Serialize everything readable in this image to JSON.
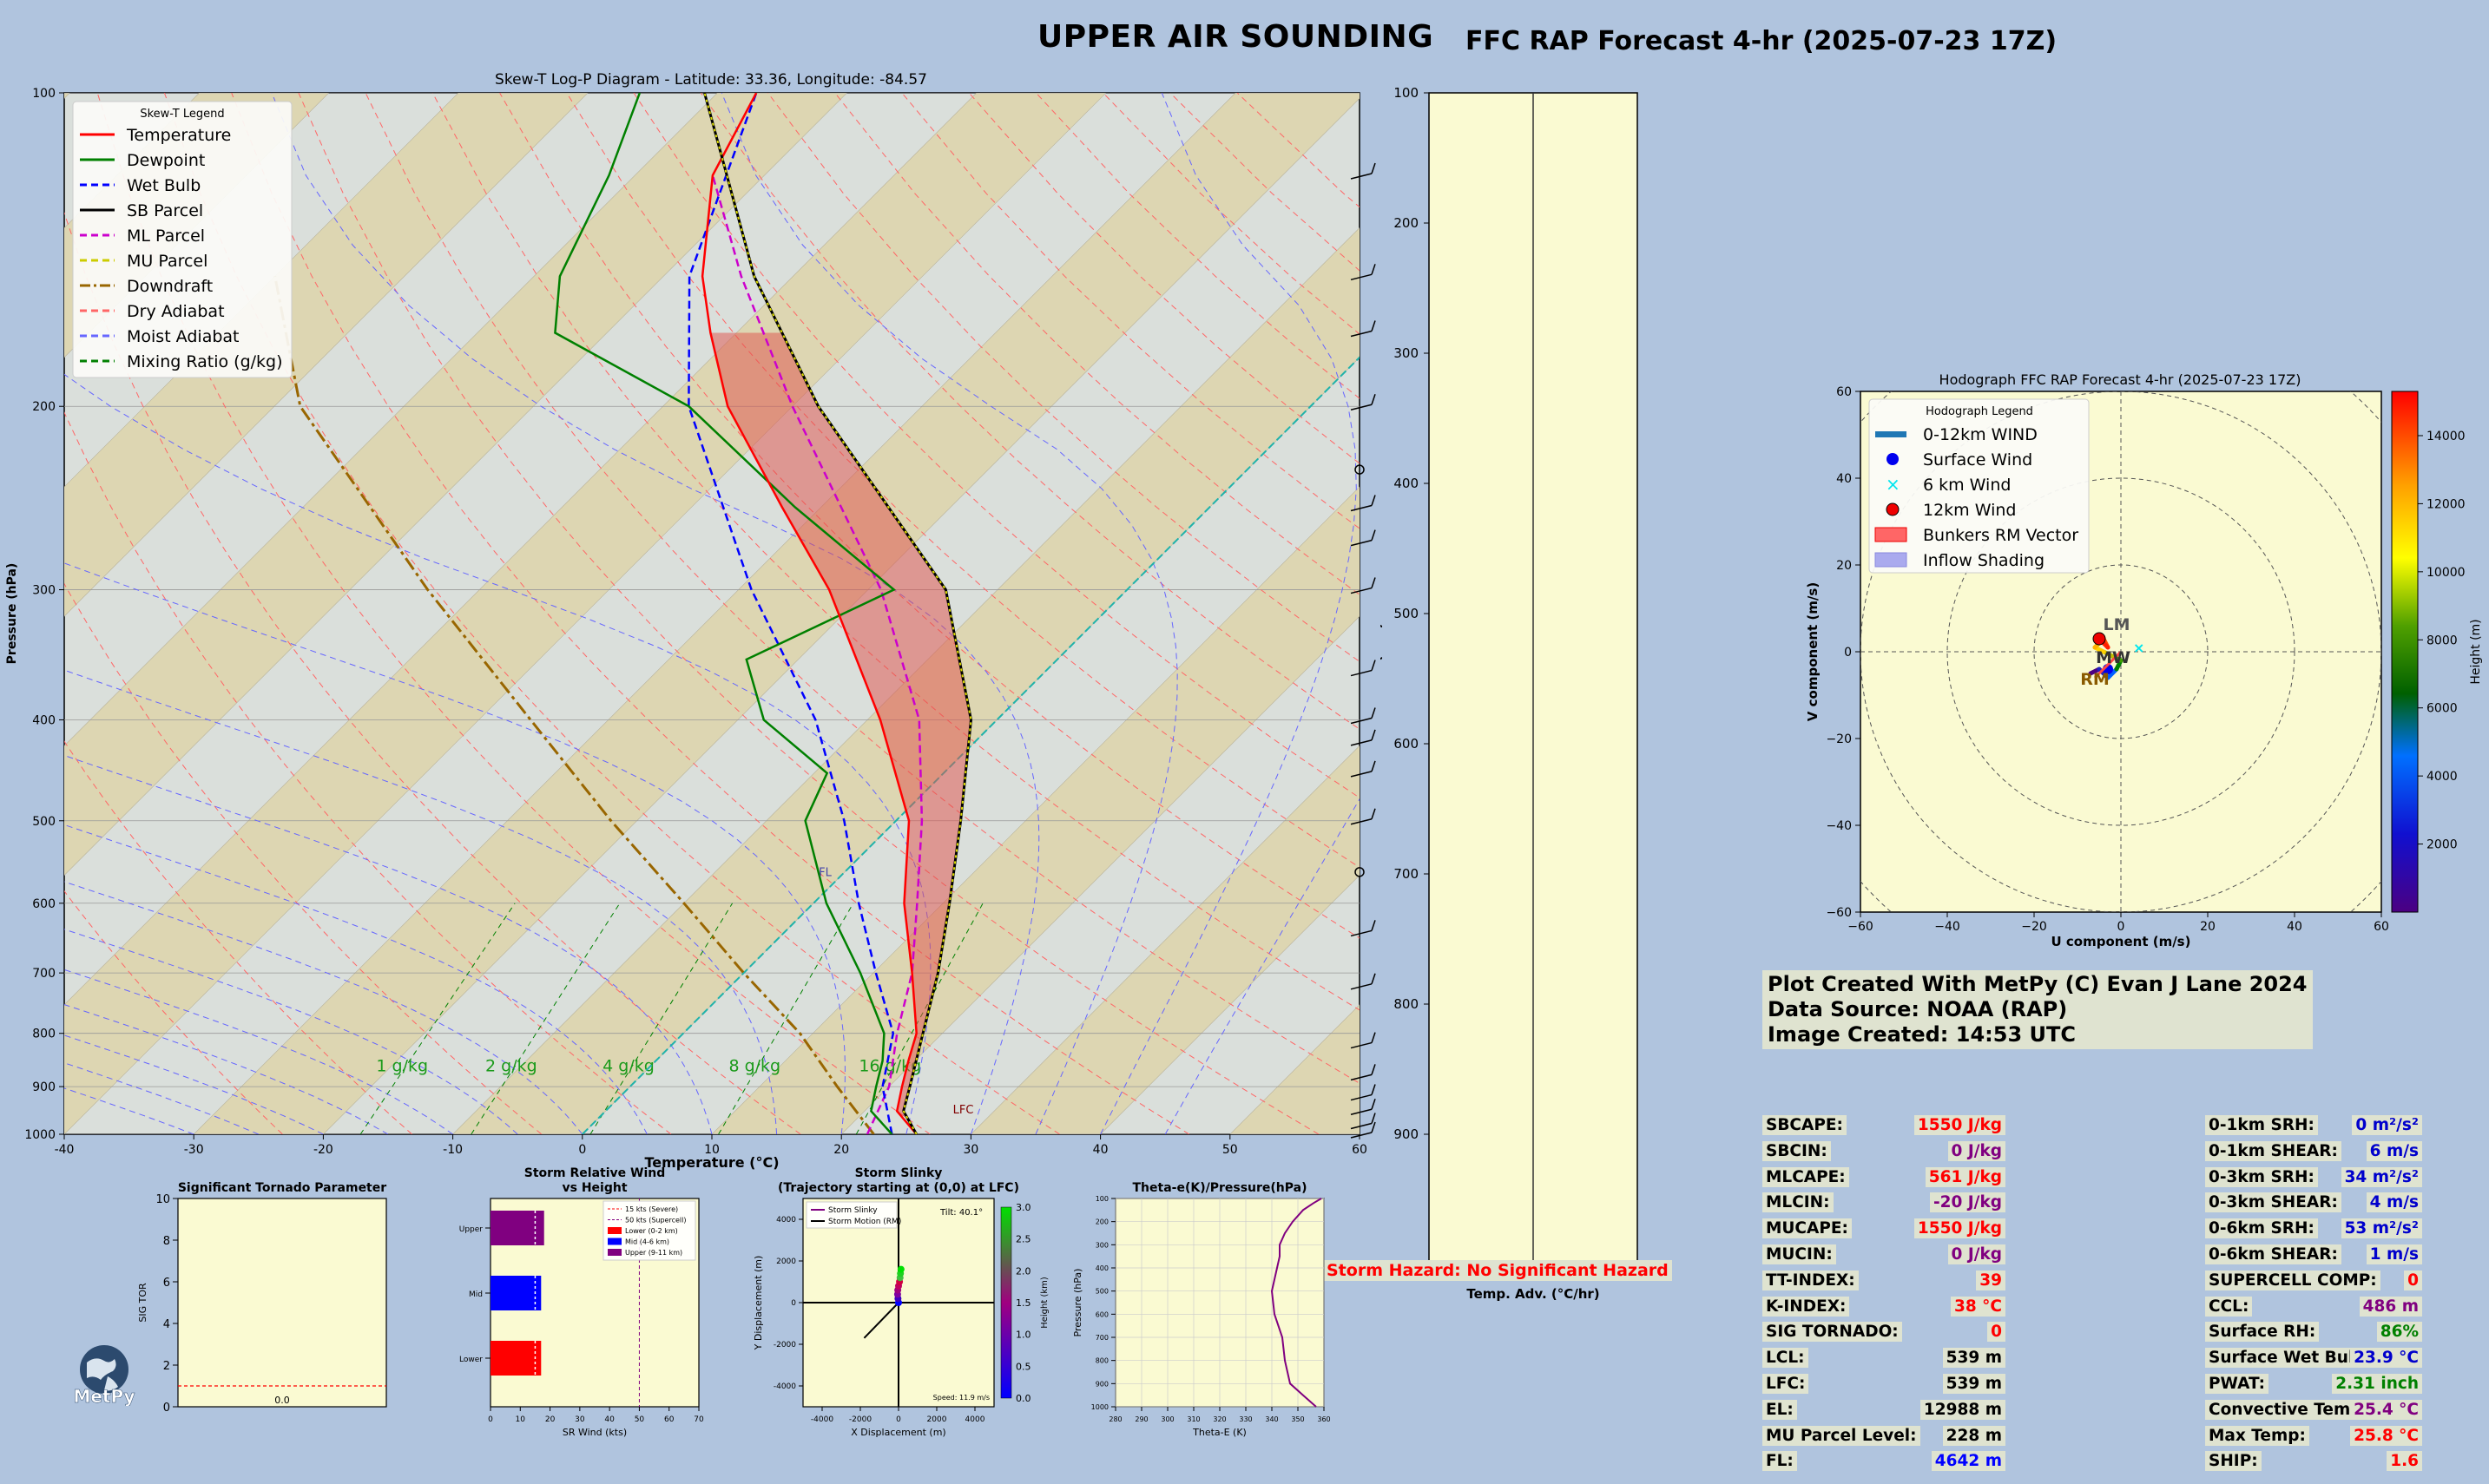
{
  "header": {
    "title": "UPPER AIR SOUNDING",
    "subtitle": "FFC RAP Forecast 4-hr (2025-07-23 17Z)"
  },
  "skewt": {
    "title": "Skew-T Log-P Diagram - Latitude: 33.36, Longitude: -84.57",
    "xlabel": "Temperature (°C)",
    "ylabel": "Pressure (hPa)",
    "x_ticks": [
      "-40",
      "-30",
      "-20",
      "-10",
      "0",
      "10",
      "20",
      "30",
      "40",
      "50",
      "60"
    ],
    "y_ticks": [
      "100",
      "200",
      "300",
      "400",
      "500",
      "600",
      "700",
      "800",
      "900",
      "1000"
    ],
    "legend_title": "Skew-T Legend",
    "legend": [
      {
        "label": "Temperature",
        "color": "#ff0000",
        "dash": "solid"
      },
      {
        "label": "Dewpoint",
        "color": "#008000",
        "dash": "solid"
      },
      {
        "label": "Wet Bulb",
        "color": "#0000ff",
        "dash": "dashed"
      },
      {
        "label": "SB Parcel",
        "color": "#000000",
        "dash": "solid"
      },
      {
        "label": "ML Parcel",
        "color": "#cc00cc",
        "dash": "dashed"
      },
      {
        "label": "MU Parcel",
        "color": "#cccc00",
        "dash": "dashed"
      },
      {
        "label": "Downdraft",
        "color": "#996600",
        "dash": "dashdot"
      },
      {
        "label": "Dry Adiabat",
        "color": "#ff6666",
        "dash": "dashed"
      },
      {
        "label": "Moist Adiabat",
        "color": "#6666ff",
        "dash": "dashed"
      },
      {
        "label": "Mixing Ratio (g/kg)",
        "color": "#008000",
        "dash": "dashed"
      }
    ],
    "mixing_labels": [
      "1 g/kg",
      "2 g/kg",
      "4 g/kg",
      "8 g/kg",
      "16 g/kg"
    ],
    "lfc_label": "LFC",
    "fl_label": "FL"
  },
  "temp_adv": {
    "xlabel": "Temp. Adv. (°C/hr)",
    "y_ticks": [
      "100",
      "200",
      "300",
      "400",
      "500",
      "600",
      "700",
      "800",
      "900"
    ]
  },
  "hodograph": {
    "title": "Hodograph FFC RAP Forecast 4-hr (2025-07-23 17Z)",
    "xlabel": "U component (m/s)",
    "ylabel": "V component (m/s)",
    "cbar_label": "Height (m)",
    "x_ticks": [
      "−60",
      "−40",
      "−20",
      "0",
      "20",
      "40",
      "60"
    ],
    "y_ticks": [
      "60",
      "40",
      "20",
      "0",
      "−20",
      "−40",
      "−60"
    ],
    "cbar_ticks": [
      "14000",
      "12000",
      "10000",
      "8000",
      "6000",
      "4000",
      "2000"
    ],
    "legend_title": "Hodograph Legend",
    "legend": [
      "0-12km WIND",
      "Surface Wind",
      "6 km Wind",
      "12km Wind",
      "Bunkers RM Vector",
      "Inflow Shading"
    ],
    "labels": {
      "lm": "LM",
      "rm": "RM",
      "mw": "MW"
    }
  },
  "credits": {
    "line1": "Plot Created With MetPy (C) Evan J Lane 2024",
    "line2": "Data Source: NOAA (RAP)",
    "line3": "Image Created: 14:53 UTC"
  },
  "hazard": "Storm Hazard: No Significant Hazard",
  "stats_left": [
    {
      "label": "SBCAPE:",
      "value": "1550 J/kg",
      "color": "#ff0000"
    },
    {
      "label": "SBCIN:",
      "value": "0 J/kg",
      "color": "#800080"
    },
    {
      "label": "MLCAPE:",
      "value": "561 J/kg",
      "color": "#ff0000"
    },
    {
      "label": "MLCIN:",
      "value": "-20 J/kg",
      "color": "#800080"
    },
    {
      "label": "MUCAPE:",
      "value": "1550 J/kg",
      "color": "#ff0000"
    },
    {
      "label": "MUCIN:",
      "value": "0 J/kg",
      "color": "#800080"
    },
    {
      "label": "TT-INDEX:",
      "value": "39",
      "color": "#ff0000"
    },
    {
      "label": "K-INDEX:",
      "value": "38 °C",
      "color": "#ff0000"
    },
    {
      "label": "SIG TORNADO:",
      "value": "0",
      "color": "#ff0000"
    },
    {
      "label": "LCL:",
      "value": "539 m",
      "color": "#000000"
    },
    {
      "label": "LFC:",
      "value": "539 m",
      "color": "#000000"
    },
    {
      "label": "EL:",
      "value": "12988 m",
      "color": "#000000"
    },
    {
      "label": "MU Parcel Level:",
      "value": "228 m",
      "color": "#000000"
    },
    {
      "label": "FL:",
      "value": "4642 m",
      "color": "#0000ff"
    }
  ],
  "stats_right": [
    {
      "label": "0-1km SRH:",
      "value": "0 m²/s²",
      "color": "#0000cc"
    },
    {
      "label": "0-1km SHEAR:",
      "value": "6 m/s",
      "color": "#0000cc"
    },
    {
      "label": "0-3km SRH:",
      "value": "34 m²/s²",
      "color": "#0000cc"
    },
    {
      "label": "0-3km SHEAR:",
      "value": "4 m/s",
      "color": "#0000cc"
    },
    {
      "label": "0-6km SRH:",
      "value": "53 m²/s²",
      "color": "#0000cc"
    },
    {
      "label": "0-6km SHEAR:",
      "value": "1 m/s",
      "color": "#0000cc"
    },
    {
      "label": "SUPERCELL COMP:",
      "value": "0",
      "color": "#ff0000"
    },
    {
      "label": "CCL:",
      "value": "486 m",
      "color": "#800080"
    },
    {
      "label": "Surface RH:",
      "value": "86%",
      "color": "#008000"
    },
    {
      "label": "Surface Wet Bulb:",
      "value": "23.9 °C",
      "color": "#0000cc"
    },
    {
      "label": "PWAT:",
      "value": "2.31 inch",
      "color": "#008000"
    },
    {
      "label": "Convective Temp:",
      "value": "25.4 °C",
      "color": "#800080"
    },
    {
      "label": "Max Temp:",
      "value": "25.8 °C",
      "color": "#ff0000"
    },
    {
      "label": "SHIP:",
      "value": "1.6",
      "color": "#ff0000"
    }
  ],
  "stp_panel": {
    "title": "Significant Tornado Parameter",
    "ylabel": "SIG TOR",
    "y_ticks": [
      "10",
      "8",
      "6",
      "4",
      "2",
      "0"
    ],
    "value_label": "0.0"
  },
  "srw_panel": {
    "title_line1": "Storm Relative Wind",
    "title_line2": "vs Height",
    "xlabel": "SR Wind (kts)",
    "x_ticks": [
      "0",
      "10",
      "20",
      "30",
      "40",
      "50",
      "60",
      "70"
    ],
    "categories": [
      "Upper",
      "Mid",
      "Lower"
    ],
    "legend": [
      "15 kts (Severe)",
      "50 kts (Supercell)",
      "Lower (0-2 km)",
      "Mid (4-6 km)",
      "Upper (9-11 km)"
    ]
  },
  "slinky_panel": {
    "title_line1": "Storm Slinky",
    "title_line2": "(Trajectory starting at (0,0) at LFC)",
    "xlabel": "X Displacement (m)",
    "ylabel": "Y Displacement (m)",
    "cbar_label": "Height (km)",
    "x_ticks": [
      "-4000",
      "-2000",
      "0",
      "2000",
      "4000"
    ],
    "y_ticks": [
      "4000",
      "2000",
      "0",
      "-2000",
      "-4000"
    ],
    "cbar_ticks": [
      "3.0",
      "2.5",
      "2.0",
      "1.5",
      "1.0",
      "0.5",
      "0.0"
    ],
    "legend": [
      "Storm Slinky",
      "Storm Motion (RM)"
    ],
    "tilt": "Tilt: 40.1°",
    "speed": "Speed: 11.9 m/s"
  },
  "thetae_panel": {
    "title": "Theta-e(K)/Pressure(hPa)",
    "xlabel": "Theta-E (K)",
    "ylabel": "Pressure (hPa)",
    "x_ticks": [
      "280",
      "290",
      "300",
      "310",
      "320",
      "330",
      "340",
      "350",
      "360"
    ],
    "y_ticks": [
      "100",
      "200",
      "300",
      "400",
      "500",
      "600",
      "700",
      "800",
      "900",
      "1000"
    ]
  },
  "chart_data": [
    {
      "type": "line",
      "title": "Skew-T Log-P Diagram - Latitude: 33.36, Longitude: -84.57",
      "xlabel": "Temperature (°C)",
      "ylabel": "Pressure (hPa)",
      "xlim": [
        -40,
        60
      ],
      "ylim": [
        1000,
        100
      ],
      "y_scale": "log",
      "skew": "45°",
      "series": [
        {
          "name": "Temperature",
          "pressure": [
            1000,
            950,
            900,
            850,
            800,
            700,
            600,
            500,
            400,
            300,
            250,
            200,
            170,
            150,
            120,
            100
          ],
          "temp": [
            25.8,
            22.5,
            21,
            19.5,
            18,
            13,
            7,
            1,
            -9,
            -23,
            -33,
            -45,
            -52,
            -57,
            -64,
            -67
          ]
        },
        {
          "name": "Dewpoint",
          "pressure": [
            1000,
            950,
            900,
            850,
            800,
            700,
            600,
            500,
            450,
            400,
            350,
            300,
            250,
            200,
            170,
            150,
            120,
            100
          ],
          "temp": [
            23.9,
            20.5,
            19,
            17.5,
            15.5,
            9,
            1,
            -7,
            -9,
            -18,
            -24,
            -18,
            -32,
            -48,
            -64,
            -68,
            -72,
            -76
          ]
        },
        {
          "name": "Wet Bulb",
          "pressure": [
            1000,
            900,
            800,
            700,
            600,
            500,
            400,
            300,
            200,
            150,
            100
          ],
          "temp": [
            23.9,
            19.5,
            16.2,
            10.2,
            3.5,
            -4,
            -14,
            -29,
            -48,
            -58,
            -67
          ]
        },
        {
          "name": "SB Parcel",
          "pressure": [
            1000,
            950,
            900,
            800,
            700,
            600,
            500,
            400,
            300,
            200,
            150,
            100
          ],
          "temp": [
            25.8,
            23,
            21.6,
            18.5,
            15,
            10.5,
            5,
            -2,
            -14,
            -38,
            -53,
            -71
          ]
        },
        {
          "name": "ML Parcel",
          "pressure": [
            1000,
            900,
            800,
            700,
            600,
            500,
            400,
            300,
            200,
            150,
            120
          ],
          "temp": [
            22,
            20,
            16.5,
            13,
            8,
            2,
            -6,
            -19,
            -40,
            -54,
            -64
          ]
        },
        {
          "name": "Downdraft",
          "pressure": [
            1000,
            900,
            800,
            700,
            600,
            500,
            400,
            300,
            200,
            150
          ],
          "temp": [
            22.5,
            16,
            9,
            0,
            -10,
            -22,
            -36,
            -54,
            -78,
            -90
          ]
        }
      ],
      "lfc_hpa": 940,
      "el_hpa": 170
    },
    {
      "type": "line",
      "title": "Hodograph FFC RAP Forecast 4-hr (2025-07-23 17Z)",
      "xlabel": "U component (m/s)",
      "ylabel": "V component (m/s)",
      "xlim": [
        -60,
        60
      ],
      "ylim": [
        -60,
        60
      ],
      "series": [
        {
          "name": "0-12km WIND",
          "u": [
            -7,
            -5,
            -3,
            -1,
            0,
            -2,
            -4,
            -6,
            -5,
            -4,
            -3,
            -5
          ],
          "v": [
            -5,
            -4,
            -6,
            -4,
            -2,
            -1,
            0,
            1,
            2,
            3,
            1,
            3
          ]
        }
      ],
      "surface_wind": [
        -3,
        -4
      ],
      "six_km_wind": [
        4,
        1
      ],
      "twelve_km_wind": [
        -5,
        3
      ],
      "bunkers_rm": [
        -6,
        -6
      ],
      "bunkers_lm": [
        -1,
        5
      ],
      "mean_wind": [
        -3,
        -1
      ]
    },
    {
      "type": "bar",
      "title": "Significant Tornado Parameter",
      "ylabel": "SIG TOR",
      "values": [
        0.0
      ],
      "ylim": [
        0,
        10
      ],
      "threshold": 1
    },
    {
      "type": "bar",
      "title": "Storm Relative Wind vs Height",
      "xlabel": "SR Wind (kts)",
      "categories": [
        "Upper",
        "Mid",
        "Lower"
      ],
      "values": [
        18,
        17,
        17
      ],
      "xlim": [
        0,
        70
      ],
      "reference_lines": [
        15,
        50
      ]
    },
    {
      "type": "scatter",
      "title": "Storm Slinky",
      "xlabel": "X Displacement (m)",
      "ylabel": "Y Displacement (m)",
      "xlim": [
        -5000,
        5000
      ],
      "ylim": [
        -5000,
        5000
      ],
      "series": [
        {
          "name": "Storm Slinky",
          "x": [
            0,
            -30,
            -50,
            -40,
            0,
            50,
            80,
            100,
            130
          ],
          "y": [
            0,
            200,
            400,
            600,
            800,
            1000,
            1200,
            1400,
            1600
          ]
        }
      ],
      "storm_motion_rm": {
        "x": [
          0,
          -1800
        ],
        "y": [
          0,
          -1700
        ]
      }
    },
    {
      "type": "line",
      "title": "Theta-e(K)/Pressure(hPa)",
      "xlabel": "Theta-E (K)",
      "ylabel": "Pressure (hPa)",
      "xlim": [
        280,
        360
      ],
      "ylim": [
        1000,
        100
      ],
      "series": [
        {
          "name": "Theta-e",
          "pressure": [
            1000,
            950,
            900,
            850,
            800,
            700,
            600,
            500,
            400,
            350,
            300,
            250,
            200,
            150,
            120,
            100
          ],
          "theta_e": [
            357,
            352,
            347,
            346,
            345,
            344,
            341,
            340,
            342,
            343,
            343,
            345,
            348,
            352,
            356,
            359
          ]
        }
      ]
    }
  ]
}
